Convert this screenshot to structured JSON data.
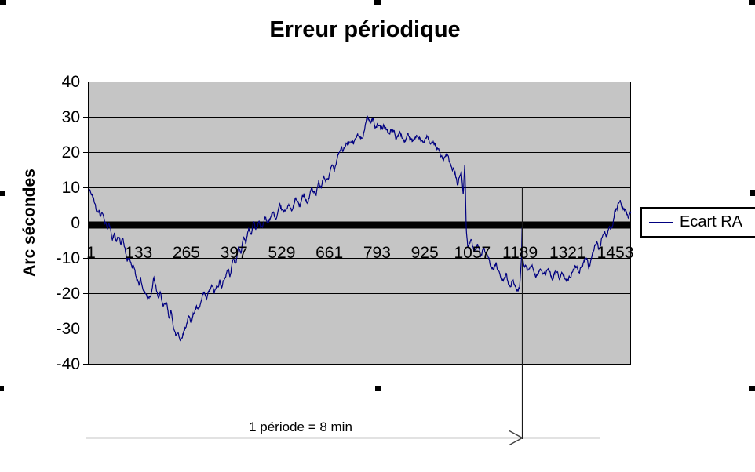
{
  "chart": {
    "title": "Erreur périodique",
    "y_axis_title": "Arc sécondes",
    "legend_label": "Ecart RA",
    "annotation_text": "1 période = 8 min"
  },
  "colors": {
    "series_line": "#000080",
    "plot_background": "#c5c5c5",
    "gridline": "#000000",
    "zero_axis": "#000000",
    "text": "#000000",
    "legend_border": "#000000",
    "annotation_line": "#2a2a2a",
    "selection_handle": "#000000"
  },
  "chart_data": {
    "type": "line",
    "title": "Erreur périodique",
    "xlabel": "",
    "ylabel": "Arc sécondes",
    "ylim": [
      -40,
      40
    ],
    "xlim": [
      1,
      1464
    ],
    "grid": "horizontal",
    "legend_position": "right",
    "plot_bg": "#c5c5c5",
    "y_ticks": [
      40,
      30,
      20,
      10,
      0,
      -10,
      -20,
      -30,
      -40
    ],
    "x_tick_labels": [
      "1",
      "133",
      "265",
      "397",
      "529",
      "661",
      "793",
      "925",
      "1057",
      "1189",
      "1321",
      "1453"
    ],
    "n_points": 1464,
    "annotation": {
      "text": "1 période = 8 min",
      "period_marker_category": 1189
    },
    "series": [
      {
        "name": "Ecart RA",
        "color": "#000080",
        "anchors": [
          [
            1,
            9.5
          ],
          [
            11,
            7.3
          ],
          [
            19,
            4.7
          ],
          [
            21,
            3.3
          ],
          [
            28,
            4.4
          ],
          [
            32,
            2.4
          ],
          [
            38,
            3.6
          ],
          [
            44,
            0.5
          ],
          [
            51,
            -0.9
          ],
          [
            53,
            0.2
          ],
          [
            59,
            -2
          ],
          [
            64,
            -4.2
          ],
          [
            70,
            -3.1
          ],
          [
            74,
            -5.3
          ],
          [
            83,
            -4.2
          ],
          [
            87,
            -6.4
          ],
          [
            93,
            -4.9
          ],
          [
            100,
            -8.7
          ],
          [
            104,
            -10.9
          ],
          [
            110,
            -9.3
          ],
          [
            117,
            -12.7
          ],
          [
            121,
            -11.6
          ],
          [
            127,
            -15.3
          ],
          [
            136,
            -16.7
          ],
          [
            140,
            -15.6
          ],
          [
            148,
            -19
          ],
          [
            159,
            -21
          ],
          [
            167,
            -20
          ],
          [
            174,
            -16.4
          ],
          [
            176,
            -15.6
          ],
          [
            182,
            -19
          ],
          [
            189,
            -21.6
          ],
          [
            195,
            -20
          ],
          [
            201,
            -24.4
          ],
          [
            210,
            -23.1
          ],
          [
            216,
            -26.7
          ],
          [
            222,
            -25.3
          ],
          [
            231,
            -29.8
          ],
          [
            235,
            -32
          ],
          [
            242,
            -30.9
          ],
          [
            248,
            -33.1
          ],
          [
            254,
            -31
          ],
          [
            263,
            -28.7
          ],
          [
            269,
            -26.7
          ],
          [
            275,
            -27.8
          ],
          [
            284,
            -25.3
          ],
          [
            290,
            -23.8
          ],
          [
            297,
            -25.3
          ],
          [
            305,
            -22.2
          ],
          [
            311,
            -20.4
          ],
          [
            318,
            -22
          ],
          [
            326,
            -19.3
          ],
          [
            333,
            -18.2
          ],
          [
            339,
            -20
          ],
          [
            347,
            -17.8
          ],
          [
            354,
            -16.2
          ],
          [
            360,
            -18
          ],
          [
            364,
            -16.7
          ],
          [
            375,
            -13
          ],
          [
            381,
            -14.5
          ],
          [
            390,
            -10
          ],
          [
            396,
            -11.5
          ],
          [
            405,
            -7
          ],
          [
            411,
            -8.5
          ],
          [
            417,
            -4
          ],
          [
            424,
            -5.5
          ],
          [
            432,
            -1.5
          ],
          [
            439,
            -3
          ],
          [
            445,
            0.5
          ],
          [
            451,
            -2
          ],
          [
            460,
            1
          ],
          [
            468,
            -1.5
          ],
          [
            477,
            2
          ],
          [
            485,
            0
          ],
          [
            496,
            3
          ],
          [
            506,
            1
          ],
          [
            517,
            4
          ],
          [
            528,
            2.5
          ],
          [
            538,
            5.5
          ],
          [
            549,
            3
          ],
          [
            559,
            7
          ],
          [
            570,
            4.5
          ],
          [
            581,
            8.5
          ],
          [
            591,
            6
          ],
          [
            602,
            10
          ],
          [
            614,
            7.5
          ],
          [
            621,
            11
          ],
          [
            627,
            9.5
          ],
          [
            634,
            12.5
          ],
          [
            640,
            12
          ],
          [
            648,
            13
          ],
          [
            657,
            16
          ],
          [
            663,
            15
          ],
          [
            672,
            19.9
          ],
          [
            682,
            21.7
          ],
          [
            688,
            20.6
          ],
          [
            703,
            23.2
          ],
          [
            714,
            22.1
          ],
          [
            724,
            24.8
          ],
          [
            735,
            23.7
          ],
          [
            746,
            27.3
          ],
          [
            752,
            30.3
          ],
          [
            761,
            28.8
          ],
          [
            767,
            29.5
          ],
          [
            773,
            27.7
          ],
          [
            782,
            28.4
          ],
          [
            788,
            26.2
          ],
          [
            799,
            27.3
          ],
          [
            809,
            25.5
          ],
          [
            820,
            26.6
          ],
          [
            830,
            24
          ],
          [
            841,
            25.5
          ],
          [
            852,
            23.2
          ],
          [
            862,
            24.8
          ],
          [
            873,
            22.6
          ],
          [
            883,
            24
          ],
          [
            894,
            25
          ],
          [
            905,
            22.9
          ],
          [
            915,
            24.3
          ],
          [
            925,
            21.7
          ],
          [
            936,
            22.9
          ],
          [
            947,
            19.9
          ],
          [
            957,
            17.7
          ],
          [
            968,
            18.8
          ],
          [
            978,
            15.9
          ],
          [
            989,
            14.3
          ],
          [
            995,
            11
          ],
          [
            1002,
            13
          ],
          [
            1006,
            14.5
          ],
          [
            1011,
            8
          ],
          [
            1015,
            16
          ],
          [
            1017,
            10
          ],
          [
            1019,
            -1
          ],
          [
            1023,
            -6.4
          ],
          [
            1032,
            -4.5
          ],
          [
            1040,
            -8
          ],
          [
            1049,
            -6.2
          ],
          [
            1057,
            -9.5
          ],
          [
            1068,
            -7.6
          ],
          [
            1078,
            -11
          ],
          [
            1089,
            -12.8
          ],
          [
            1100,
            -11.6
          ],
          [
            1110,
            -15.3
          ],
          [
            1121,
            -16.7
          ],
          [
            1127,
            -14.5
          ],
          [
            1135,
            -17.5
          ],
          [
            1146,
            -16
          ],
          [
            1156,
            -19.3
          ],
          [
            1163,
            -18.2
          ],
          [
            1168,
            -10
          ],
          [
            1170,
            -0.5
          ],
          [
            1172,
            -10
          ],
          [
            1176,
            -11.3
          ],
          [
            1187,
            -13.8
          ],
          [
            1197,
            -11.6
          ],
          [
            1208,
            -14.9
          ],
          [
            1218,
            -12.7
          ],
          [
            1229,
            -15.3
          ],
          [
            1240,
            -13.1
          ],
          [
            1250,
            -16
          ],
          [
            1261,
            -13.5
          ],
          [
            1271,
            -15.6
          ],
          [
            1282,
            -13.8
          ],
          [
            1293,
            -16
          ],
          [
            1303,
            -13.8
          ],
          [
            1314,
            -11.6
          ],
          [
            1324,
            -14.2
          ],
          [
            1333,
            -12
          ],
          [
            1343,
            -9.8
          ],
          [
            1350,
            -12.3
          ],
          [
            1360,
            -9.3
          ],
          [
            1371,
            -5.6
          ],
          [
            1377,
            -7.8
          ],
          [
            1386,
            -4.2
          ],
          [
            1392,
            -2
          ],
          [
            1399,
            -3.3
          ],
          [
            1407,
            -0.9
          ],
          [
            1413,
            -1.6
          ],
          [
            1420,
            2.9
          ],
          [
            1428,
            4.7
          ],
          [
            1434,
            6.8
          ],
          [
            1439,
            5.5
          ],
          [
            1449,
            3.6
          ],
          [
            1456,
            1.8
          ],
          [
            1464,
            3.3
          ]
        ]
      }
    ]
  }
}
